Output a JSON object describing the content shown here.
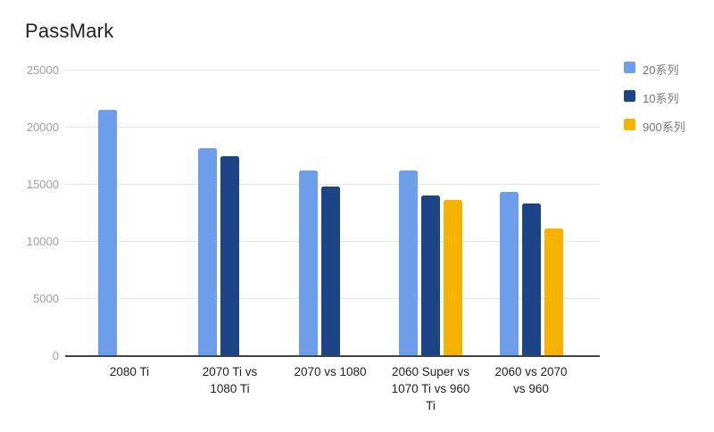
{
  "title": "PassMark",
  "chart_data": {
    "type": "bar",
    "title": "PassMark",
    "xlabel": "",
    "ylabel": "",
    "ylim": [
      0,
      25000
    ],
    "yticks": [
      0,
      5000,
      10000,
      15000,
      20000,
      25000
    ],
    "ytick_labels": [
      "0",
      "5000",
      "10000",
      "15000",
      "20000",
      "25000"
    ],
    "grid": true,
    "legend_position": "right",
    "categories": [
      "2080 Ti",
      "2070 Ti vs 1080 Ti",
      "2070 vs 1080",
      "2060 Super vs 1070 Ti vs 960 Ti",
      "2060 vs 2070 vs 960"
    ],
    "categories_wrapped": [
      [
        "2080 Ti"
      ],
      [
        "2070 Ti vs",
        "1080 Ti"
      ],
      [
        "2070 vs 1080"
      ],
      [
        "2060 Super vs",
        "1070 Ti vs 960",
        "Ti"
      ],
      [
        "2060 vs 2070",
        "vs 960"
      ]
    ],
    "series": [
      {
        "name": "20系列",
        "color": "#6d9eeb",
        "values": [
          21500,
          18100,
          16200,
          16200,
          14300
        ]
      },
      {
        "name": "10系列",
        "color": "#1c4587",
        "values": [
          null,
          17400,
          14800,
          14000,
          13300
        ]
      },
      {
        "name": "900系列",
        "color": "#f6b200",
        "values": [
          null,
          null,
          null,
          13600,
          11100
        ]
      }
    ]
  },
  "colors": {
    "background": "#ffffff",
    "gridline": "#e6e6e6",
    "axis_baseline": "#424242",
    "y_tick_text": "#9e9e9e",
    "x_tick_text": "#212121",
    "legend_text": "#757575",
    "title_text": "#212121"
  }
}
